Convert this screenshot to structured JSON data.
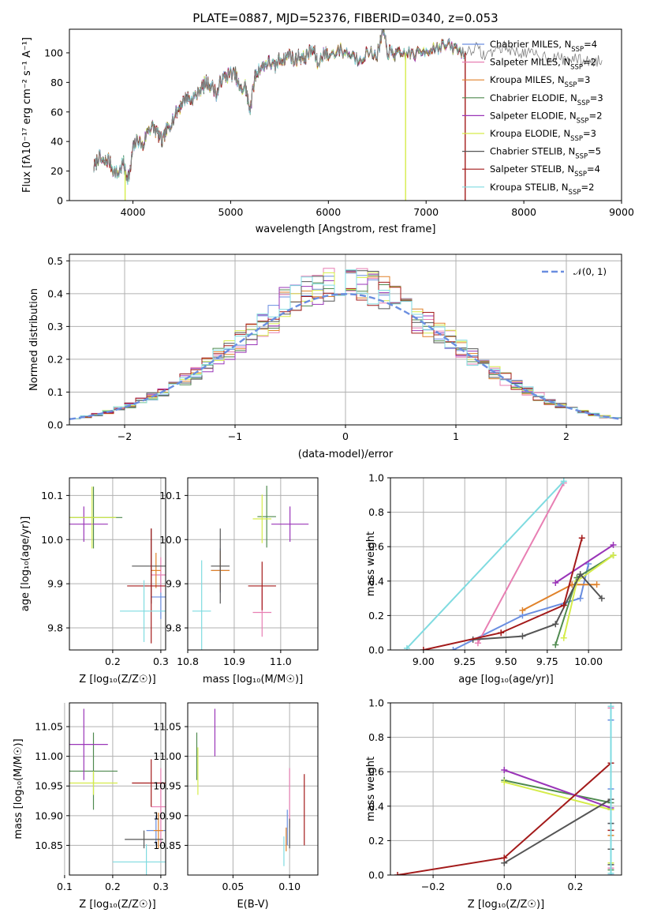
{
  "colors": {
    "series": [
      "#6a8ee0",
      "#e87fb3",
      "#e0822a",
      "#4f8a4f",
      "#9a35b8",
      "#d5ec4a",
      "#555555",
      "#a31a1a",
      "#7fdbe0"
    ],
    "grid": "#b0b0b0",
    "spectrum": "#808080",
    "gaussian": "#6a8ee0"
  },
  "chart_data": [
    {
      "type": "line",
      "title": "PLATE=0887, MJD=52376, FIBERID=0340, z=0.053",
      "xlabel": "wavelength [Angstrom, rest frame]",
      "ylabel": "Flux [fλ10⁻¹⁷ erg cm⁻² s⁻¹ A⁻¹]",
      "xlim": [
        3350,
        9000
      ],
      "ylim": [
        0,
        116
      ],
      "xticks": [
        "4000",
        "5000",
        "6000",
        "7000",
        "8000",
        "9000"
      ],
      "yticks": [
        "0",
        "20",
        "40",
        "60",
        "80",
        "100"
      ],
      "grid": false,
      "legend_position": "right",
      "legend": [
        "Chabrier MILES, N_SSP=4",
        "Salpeter MILES, N_SSP=2",
        "Kroupa MILES, N_SSP=3",
        "Chabrier ELODIE, N_SSP=3",
        "Salpeter ELODIE, N_SSP=2",
        "Kroupa ELODIE, N_SSP=3",
        "Chabrier STELIB, N_SSP=5",
        "Salpeter STELIB, N_SSP=4",
        "Kroupa STELIB, N_SSP=2"
      ],
      "spectrum_x": [
        3600,
        3650,
        3700,
        3750,
        3800,
        3850,
        3900,
        3933,
        3968,
        4000,
        4050,
        4102,
        4150,
        4200,
        4250,
        4300,
        4340,
        4380,
        4450,
        4500,
        4550,
        4600,
        4650,
        4700,
        4750,
        4800,
        4861,
        4900,
        4950,
        5000,
        5050,
        5100,
        5150,
        5175,
        5200,
        5250,
        5300,
        5350,
        5400,
        5450,
        5500,
        5550,
        5600,
        5650,
        5700,
        5750,
        5800,
        5850,
        5893,
        5950,
        6000,
        6100,
        6200,
        6300,
        6400,
        6500,
        6563,
        6600,
        6650,
        6700,
        6800,
        6900,
        7000,
        7100,
        7200,
        7300,
        7400,
        7500,
        7600,
        7700,
        7800,
        7900,
        8000,
        8100,
        8200,
        8300,
        8400,
        8500,
        8600,
        8700,
        8800
      ],
      "spectrum_y": [
        22,
        30,
        25,
        28,
        20,
        18,
        26,
        16,
        18,
        35,
        42,
        36,
        48,
        50,
        46,
        40,
        47,
        52,
        60,
        66,
        70,
        68,
        72,
        76,
        80,
        78,
        72,
        82,
        84,
        86,
        85,
        74,
        78,
        68,
        62,
        84,
        90,
        92,
        94,
        90,
        96,
        95,
        100,
        94,
        98,
        96,
        100,
        102,
        92,
        100,
        98,
        102,
        100,
        96,
        100,
        99,
        115,
        101,
        100,
        98,
        100,
        99,
        102,
        104,
        105,
        103,
        100,
        104,
        98,
        102,
        104,
        101,
        100,
        99,
        98,
        97,
        96,
        96,
        95,
        94,
        95
      ],
      "dropout_lines": [
        {
          "series": "Kroupa ELODIE",
          "x": 3920,
          "y_from": 20,
          "y_to": 0
        },
        {
          "series": "Kroupa ELODIE",
          "x": 6790,
          "y_from": 100,
          "y_to": 0
        },
        {
          "series": "Salpeter STELIB",
          "x": 7400,
          "y_from": 100,
          "y_to": 0
        }
      ]
    },
    {
      "type": "area",
      "xlabel": "(data-model)/error",
      "ylabel": "Normed distribution",
      "xlim": [
        -2.5,
        2.5
      ],
      "ylim": [
        0,
        0.52
      ],
      "xticks": [
        "−2",
        "−1",
        "0",
        "1",
        "2"
      ],
      "yticks": [
        "0.0",
        "0.1",
        "0.2",
        "0.3",
        "0.4",
        "0.5"
      ],
      "grid": true,
      "legend_position": "top-right",
      "legend": [
        "𝒩(0, 1)"
      ],
      "bin_edges_start": -2.5,
      "bin_width": 0.1
    },
    {
      "type": "scatter",
      "xlabel": "Z [log₁₀(Z/Z☉)]",
      "ylabel": "age  [log₁₀(age/yr)]",
      "xlim": [
        0.11,
        0.31
      ],
      "ylim": [
        9.75,
        10.14
      ],
      "xticks": [
        "0.2",
        "0.3"
      ],
      "yticks": [
        "9.8",
        "9.9",
        "10.0",
        "10.1"
      ],
      "grid": true,
      "points": [
        {
          "x": 0.3,
          "xerr": 0.02,
          "y": 9.87,
          "yerr": 0.05
        },
        {
          "x": 0.3,
          "xerr": 0.02,
          "y": 9.92,
          "yerr": 0.04
        },
        {
          "x": 0.29,
          "xerr": 0.01,
          "y": 9.93,
          "yerr": 0.04
        },
        {
          "x": 0.16,
          "xerr": 0.06,
          "y": 10.05,
          "yerr": 0.07
        },
        {
          "x": 0.14,
          "xerr": 0.05,
          "y": 10.035,
          "yerr": 0.04
        },
        {
          "x": 0.157,
          "xerr": 0.05,
          "y": 10.05,
          "yerr": 0.07
        },
        {
          "x": 0.28,
          "xerr": 0.04,
          "y": 9.94,
          "yerr": 0.085
        },
        {
          "x": 0.28,
          "xerr": 0.05,
          "y": 9.895,
          "yerr": 0.13
        },
        {
          "x": 0.265,
          "xerr": 0.05,
          "y": 9.838,
          "yerr": 0.07
        }
      ]
    },
    {
      "type": "scatter",
      "xlabel": "mass [log₁₀(M/M☉)]",
      "ylabel": "",
      "xlim": [
        10.8,
        11.08
      ],
      "ylim": [
        9.75,
        10.14
      ],
      "xticks": [
        "10.8",
        "10.9",
        "11.0"
      ],
      "yticks": [
        "9.8",
        "9.9",
        "10.0",
        "10.1"
      ],
      "grid": true,
      "points": [
        {
          "x": 10.87,
          "xerr": 0.02,
          "y": 9.93,
          "yerr": 0.05
        },
        {
          "x": 10.96,
          "xerr": 0.02,
          "y": 9.835,
          "yerr": 0.055
        },
        {
          "x": 10.87,
          "xerr": 0.02,
          "y": 9.93,
          "yerr": 0.045
        },
        {
          "x": 10.97,
          "xerr": 0.02,
          "y": 10.052,
          "yerr": 0.07
        },
        {
          "x": 11.02,
          "xerr": 0.04,
          "y": 10.035,
          "yerr": 0.04
        },
        {
          "x": 10.96,
          "xerr": 0.02,
          "y": 10.047,
          "yerr": 0.055
        },
        {
          "x": 10.87,
          "xerr": 0.02,
          "y": 9.94,
          "yerr": 0.085
        },
        {
          "x": 10.96,
          "xerr": 0.03,
          "y": 9.895,
          "yerr": 0.055
        },
        {
          "x": 10.83,
          "xerr": 0.02,
          "y": 9.838,
          "yerr": 0.115
        }
      ]
    },
    {
      "type": "line",
      "xlabel": "age  [log₁₀(age/yr)]",
      "ylabel": "mass weight",
      "xlim": [
        8.8,
        10.2
      ],
      "ylim": [
        0,
        1.0
      ],
      "xticks": [
        "9.00",
        "9.25",
        "9.50",
        "9.75",
        "10.00"
      ],
      "yticks": [
        "0.0",
        "0.2",
        "0.4",
        "0.6",
        "0.8",
        "1.0"
      ],
      "grid": true,
      "series": [
        {
          "x": [
            9.18,
            9.6,
            9.95,
            10.0
          ],
          "y": [
            0.0,
            0.2,
            0.3,
            0.5
          ]
        },
        {
          "x": [
            9.33,
            9.85
          ],
          "y": [
            0.04,
            0.97
          ]
        },
        {
          "x": [
            9.6,
            9.9,
            10.05
          ],
          "y": [
            0.23,
            0.38,
            0.38
          ]
        },
        {
          "x": [
            9.8,
            9.93,
            10.15
          ],
          "y": [
            0.03,
            0.42,
            0.55
          ]
        },
        {
          "x": [
            9.8,
            10.15
          ],
          "y": [
            0.39,
            0.61
          ]
        },
        {
          "x": [
            9.85,
            9.93,
            10.15
          ],
          "y": [
            0.07,
            0.4,
            0.55
          ]
        },
        {
          "x": [
            9.3,
            9.6,
            9.8,
            9.95,
            10.08
          ],
          "y": [
            0.06,
            0.08,
            0.15,
            0.44,
            0.3
          ]
        },
        {
          "x": [
            9.0,
            9.47,
            9.85,
            9.96
          ],
          "y": [
            0.0,
            0.1,
            0.26,
            0.65
          ]
        },
        {
          "x": [
            8.9,
            9.85
          ],
          "y": [
            0.01,
            0.98
          ]
        }
      ]
    },
    {
      "type": "scatter",
      "xlabel": "Z [log₁₀(Z/Z☉)]",
      "ylabel": "mass [log₁₀(M/M☉)]",
      "xlim": [
        0.11,
        0.31
      ],
      "ylim": [
        10.8,
        11.09
      ],
      "xticks": [
        "0.1",
        "0.2",
        "0.3"
      ],
      "yticks": [
        "10.85",
        "10.90",
        "10.95",
        "11.00",
        "11.05"
      ],
      "grid": true,
      "points": [
        {
          "x": 0.29,
          "xerr": 0.02,
          "y": 10.875,
          "yerr": 0.025
        },
        {
          "x": 0.3,
          "xerr": 0.02,
          "y": 10.915,
          "yerr": 0.065
        },
        {
          "x": 0.295,
          "xerr": 0.01,
          "y": 10.875,
          "yerr": 0.03
        },
        {
          "x": 0.16,
          "xerr": 0.05,
          "y": 10.975,
          "yerr": 0.065
        },
        {
          "x": 0.14,
          "xerr": 0.05,
          "y": 11.02,
          "yerr": 0.06
        },
        {
          "x": 0.16,
          "xerr": 0.05,
          "y": 10.955,
          "yerr": 0.02
        },
        {
          "x": 0.265,
          "xerr": 0.04,
          "y": 10.86,
          "yerr": 0.015
        },
        {
          "x": 0.28,
          "xerr": 0.04,
          "y": 10.955,
          "yerr": 0.04
        },
        {
          "x": 0.27,
          "xerr": 0.07,
          "y": 10.822,
          "yerr": 0.03
        }
      ]
    },
    {
      "type": "scatter",
      "xlabel": "E(B-V)",
      "ylabel": "",
      "xlim": [
        0.01,
        0.125
      ],
      "ylim": [
        10.8,
        11.09
      ],
      "xticks": [
        "0.05",
        "0.10"
      ],
      "yticks": [
        "10.85",
        "10.90",
        "10.95",
        "11.00",
        "11.05"
      ],
      "grid": true,
      "points": [
        {
          "x": 0.098,
          "y": 10.88,
          "yerr": 0.03
        },
        {
          "x": 0.1,
          "y": 10.93,
          "yerr": 0.05
        },
        {
          "x": 0.097,
          "y": 10.86,
          "yerr": 0.02
        },
        {
          "x": 0.018,
          "y": 11.0,
          "yerr": 0.04
        },
        {
          "x": 0.034,
          "y": 11.04,
          "yerr": 0.04
        },
        {
          "x": 0.019,
          "y": 10.975,
          "yerr": 0.04
        },
        {
          "x": 0.1,
          "y": 10.87,
          "yerr": 0.025
        },
        {
          "x": 0.113,
          "y": 10.91,
          "yerr": 0.06
        },
        {
          "x": 0.095,
          "y": 10.84,
          "yerr": 0.025
        }
      ]
    },
    {
      "type": "line",
      "xlabel": "Z [log₁₀(Z/Z☉)]",
      "ylabel": "mass weight",
      "xlim": [
        -0.32,
        0.33
      ],
      "ylim": [
        0,
        1.0
      ],
      "xticks": [
        "−0.2",
        "0.0",
        "0.2"
      ],
      "yticks": [
        "0.0",
        "0.2",
        "0.4",
        "0.6",
        "0.8",
        "1.0"
      ],
      "grid": true,
      "series": [
        {
          "x": [
            0.3,
            0.3,
            0.3,
            0.3
          ],
          "y": [
            0.0,
            0.3,
            0.5,
            0.9
          ]
        },
        {
          "x": [
            0.3,
            0.3
          ],
          "y": [
            0.04,
            0.97
          ]
        },
        {
          "x": [
            0.3,
            0.3,
            0.3
          ],
          "y": [
            0.23,
            0.38,
            0.38
          ]
        },
        {
          "x": [
            0.0,
            0.3,
            0.3
          ],
          "y": [
            0.55,
            0.42,
            0.03
          ]
        },
        {
          "x": [
            0.0,
            0.3
          ],
          "y": [
            0.61,
            0.39
          ]
        },
        {
          "x": [
            0.0,
            0.3,
            0.3
          ],
          "y": [
            0.54,
            0.38,
            0.07
          ]
        },
        {
          "x": [
            0.0,
            0.3,
            0.3,
            0.3,
            0.3
          ],
          "y": [
            0.07,
            0.44,
            0.3,
            0.15,
            0.06
          ]
        },
        {
          "x": [
            -0.3,
            0.0,
            0.3,
            0.3
          ],
          "y": [
            0.0,
            0.1,
            0.65,
            0.26
          ]
        },
        {
          "x": [
            0.3,
            0.3
          ],
          "y": [
            0.01,
            0.98
          ]
        }
      ]
    }
  ]
}
